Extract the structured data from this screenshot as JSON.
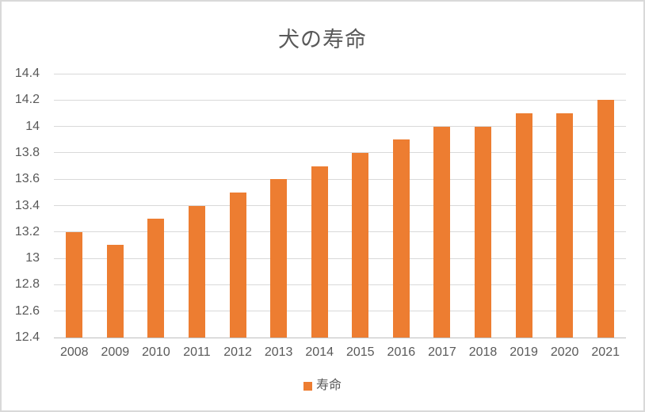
{
  "chart_data": {
    "type": "bar",
    "title": "犬の寿命",
    "categories": [
      "2008",
      "2009",
      "2010",
      "2011",
      "2012",
      "2013",
      "2014",
      "2015",
      "2016",
      "2017",
      "2018",
      "2019",
      "2020",
      "2021"
    ],
    "series": [
      {
        "name": "寿命",
        "values": [
          13.2,
          13.1,
          13.3,
          13.4,
          13.5,
          13.6,
          13.7,
          13.8,
          13.9,
          14.0,
          14.0,
          14.1,
          14.1,
          14.2
        ]
      }
    ],
    "xlabel": "",
    "ylabel": "",
    "ylim": [
      12.4,
      14.4
    ],
    "ytick_step": 0.2,
    "ytick_labels": [
      "12.4",
      "12.6",
      "12.8",
      "13",
      "13.2",
      "13.4",
      "13.6",
      "13.8",
      "14",
      "14.2",
      "14.4"
    ],
    "grid": true,
    "legend_position": "bottom",
    "bar_color": "#ed7d31",
    "text_color": "#595959",
    "gridline_color": "#d9d9d9",
    "frame_border_color": "#d9d9d9"
  },
  "legend": {
    "label": "寿命",
    "swatch_color": "#ed7d31"
  }
}
